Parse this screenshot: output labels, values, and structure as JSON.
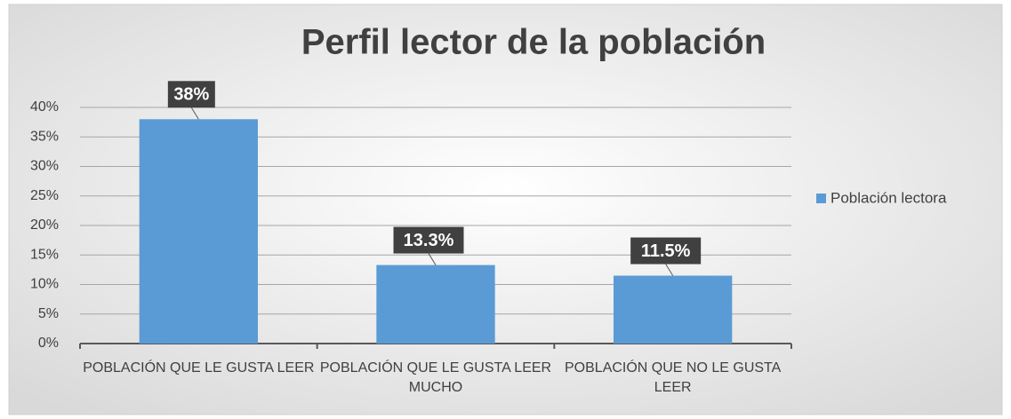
{
  "chart_data": {
    "type": "bar",
    "title": "Perfil lector de la población",
    "categories": [
      "POBLACIÓN QUE LE GUSTA LEER",
      "POBLACIÓN QUE LE GUSTA LEER MUCHO",
      "POBLACIÓN QUE NO LE GUSTA LEER"
    ],
    "series": [
      {
        "name": "Población lectora",
        "color": "#5b9bd5",
        "values": [
          38,
          13.3,
          11.5
        ],
        "value_labels": [
          "38%",
          "13.3%",
          "11.5%"
        ]
      }
    ],
    "ylim": [
      0,
      40
    ],
    "yticks": [
      {
        "value": 0,
        "label": "0%"
      },
      {
        "value": 5,
        "label": "5%"
      },
      {
        "value": 10,
        "label": "10%"
      },
      {
        "value": 15,
        "label": "15%"
      },
      {
        "value": 20,
        "label": "20%"
      },
      {
        "value": 25,
        "label": "25%"
      },
      {
        "value": 30,
        "label": "30%"
      },
      {
        "value": 35,
        "label": "35%"
      },
      {
        "value": 40,
        "label": "40%"
      }
    ],
    "grid": true,
    "legend": "right"
  }
}
